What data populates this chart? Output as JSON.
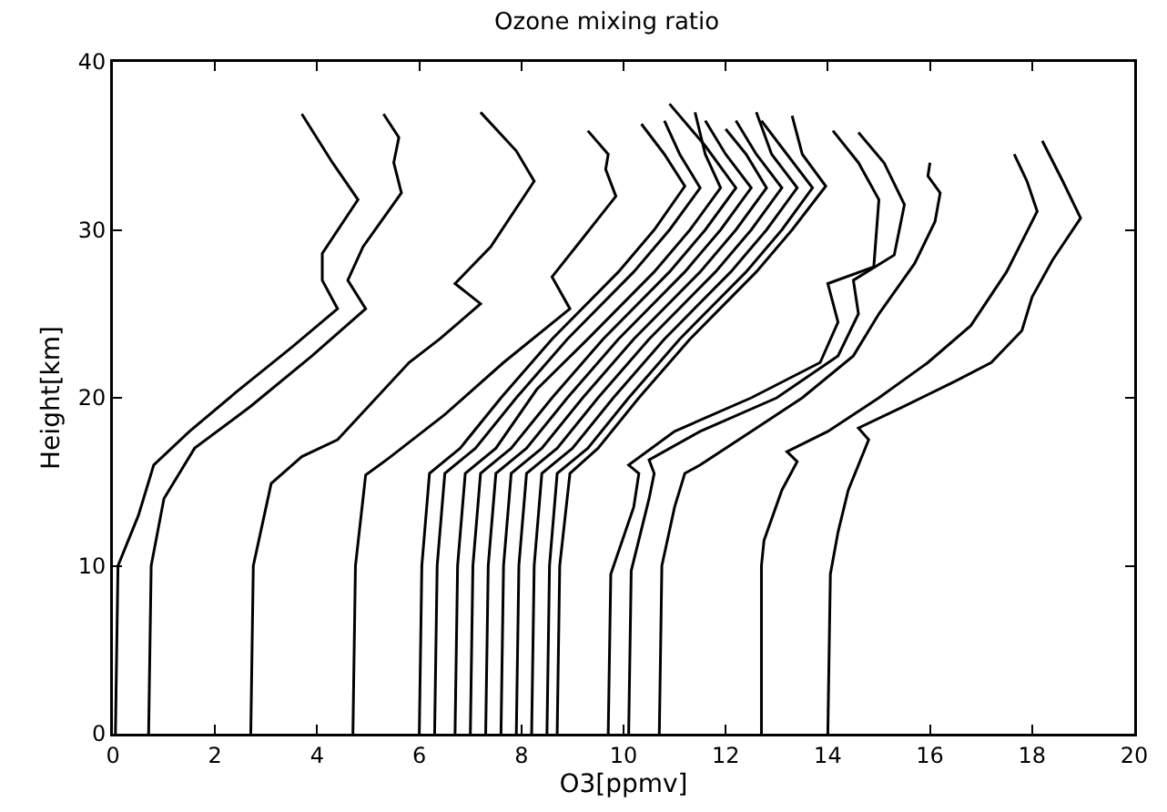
{
  "chart_data": {
    "type": "line",
    "title": "Ozone mixing ratio",
    "xlabel": "O3[ppmv]",
    "ylabel": "Height[km]",
    "xlim": [
      0,
      20
    ],
    "xticks": [
      0,
      2,
      4,
      6,
      8,
      10,
      12,
      14,
      16,
      18,
      20
    ],
    "ylim": [
      0,
      40
    ],
    "yticks": [
      0,
      10,
      20,
      30,
      40
    ],
    "grid": false,
    "marker": "none",
    "line_style": "solid",
    "series": [
      {
        "color": "#000000",
        "x": [
          0.05,
          0.1,
          0.5,
          0.8,
          1.5,
          2.4,
          3.5,
          4.4,
          4.1,
          4.1,
          4.8,
          4.3,
          3.7
        ],
        "values": [
          0,
          10,
          13,
          16,
          18,
          20.3,
          23,
          25.3,
          27,
          28.6,
          31.8,
          34,
          36.9
        ]
      },
      {
        "color": "#000000",
        "x": [
          0.7,
          0.75,
          1.0,
          1.6,
          2.7,
          3.9,
          4.95,
          4.6,
          4.9,
          5.65,
          5.5,
          5.6,
          5.3
        ],
        "values": [
          0,
          10,
          14,
          17,
          19.5,
          22.5,
          25.3,
          27,
          29,
          32.2,
          34,
          35.5,
          36.9
        ]
      },
      {
        "color": "#000000",
        "x": [
          2.7,
          2.75,
          3.1,
          3.7,
          4.4,
          5.8,
          6.4,
          7.2,
          6.7,
          7.4,
          8.25,
          7.9,
          7.2
        ],
        "values": [
          0,
          10,
          14.9,
          16.5,
          17.5,
          22.1,
          23.5,
          25.6,
          26.8,
          29,
          32.9,
          34.7,
          37
        ]
      },
      {
        "color": "#000000",
        "x": [
          4.7,
          4.75,
          4.95,
          5.4,
          6.5,
          7.65,
          8.95,
          8.6,
          9.2,
          9.85,
          9.65,
          9.7,
          9.3
        ],
        "values": [
          0,
          10,
          15.4,
          16.4,
          19,
          22.1,
          25.3,
          27.2,
          29.5,
          32,
          33.6,
          34.5,
          35.9
        ]
      },
      {
        "color": "#000000",
        "x": [
          6.0,
          6.05,
          6.2,
          6.8,
          7.6,
          8.6,
          9.9,
          10.6,
          11.2,
          10.8,
          10.35
        ],
        "values": [
          0,
          10,
          15.5,
          17,
          20,
          23.5,
          27.5,
          30,
          32.6,
          34.5,
          36.3
        ]
      },
      {
        "color": "#000000",
        "x": [
          6.3,
          6.35,
          6.5,
          7.1,
          7.9,
          8.9,
          10.2,
          10.9,
          11.5,
          11.1,
          10.8
        ],
        "values": [
          0,
          10,
          15.5,
          17,
          20,
          23.5,
          27.5,
          30,
          32.5,
          34.5,
          36.5
        ]
      },
      {
        "color": "#000000",
        "x": [
          6.7,
          6.75,
          6.9,
          7.5,
          8.3,
          9.3,
          10.6,
          11.3,
          11.9,
          11.6,
          11.4
        ],
        "values": [
          0,
          10,
          15.5,
          17,
          20.5,
          23.5,
          27.5,
          30,
          32.5,
          34.5,
          37
        ]
      },
      {
        "color": "#000000",
        "x": [
          7.0,
          7.05,
          7.2,
          7.8,
          8.6,
          9.6,
          10.9,
          11.6,
          12.2,
          11.6,
          10.9
        ],
        "values": [
          0,
          10,
          15.5,
          17,
          20,
          23.5,
          27.5,
          30,
          32.5,
          35,
          37.5
        ]
      },
      {
        "color": "#000000",
        "x": [
          7.3,
          7.35,
          7.5,
          8.1,
          8.9,
          9.9,
          11.2,
          11.9,
          12.5,
          12.0,
          11.6
        ],
        "values": [
          0,
          10,
          15.5,
          17,
          20,
          23.5,
          27.5,
          30,
          32.5,
          34.5,
          36.5
        ]
      },
      {
        "color": "#000000",
        "x": [
          7.6,
          7.65,
          7.8,
          8.4,
          9.2,
          10.2,
          11.5,
          12.2,
          12.8,
          12.4,
          12.0
        ],
        "values": [
          0,
          10,
          15.5,
          17,
          20,
          23.5,
          27.5,
          30,
          32.5,
          34.5,
          36
        ]
      },
      {
        "color": "#000000",
        "x": [
          7.9,
          7.95,
          8.1,
          8.7,
          9.5,
          10.5,
          11.8,
          12.5,
          13.1,
          12.6,
          12.2
        ],
        "values": [
          0,
          10,
          15.5,
          17,
          20,
          23.5,
          27.5,
          30,
          32.5,
          34.5,
          36.5
        ]
      },
      {
        "color": "#000000",
        "x": [
          8.2,
          8.25,
          8.4,
          9.0,
          9.8,
          10.8,
          12.1,
          12.8,
          13.4,
          12.9,
          12.6
        ],
        "values": [
          0,
          10,
          15.5,
          17,
          20,
          23.5,
          27.5,
          30,
          32.5,
          34.5,
          37
        ]
      },
      {
        "color": "#000000",
        "x": [
          8.5,
          8.55,
          8.7,
          9.3,
          10.1,
          11.1,
          12.4,
          13.1,
          13.7,
          13.2,
          12.7
        ],
        "values": [
          0,
          10,
          15.5,
          17,
          20,
          23.5,
          27.5,
          30,
          32.5,
          34.5,
          36.5
        ]
      },
      {
        "color": "#000000",
        "x": [
          8.7,
          8.75,
          8.95,
          9.5,
          10.3,
          11.3,
          12.6,
          13.3,
          13.96,
          13.5,
          13.3
        ],
        "values": [
          0,
          10,
          15.5,
          17,
          20,
          23.5,
          27.5,
          30,
          32.6,
          34.5,
          36.8
        ]
      },
      {
        "color": "#000000",
        "x": [
          9.7,
          9.75,
          10.2,
          10.3,
          10.1,
          11.0,
          12.5,
          13.85,
          14.2,
          14.0,
          14.9,
          15.0,
          14.6,
          14.1
        ],
        "values": [
          0,
          9.5,
          13.5,
          15.5,
          16,
          18,
          20,
          22.1,
          24.5,
          26.8,
          27.8,
          31.8,
          34,
          35.9
        ]
      },
      {
        "color": "#000000",
        "x": [
          10.1,
          10.15,
          10.5,
          10.6,
          10.5,
          11.5,
          13.0,
          14.2,
          14.6,
          14.5,
          15.3,
          15.5,
          15.1,
          14.6
        ],
        "values": [
          0,
          9.7,
          14,
          15.5,
          16.3,
          18,
          20,
          22.5,
          25,
          27,
          28.5,
          31.5,
          34,
          35.8
        ]
      },
      {
        "color": "#000000",
        "x": [
          10.7,
          10.75,
          11.0,
          11.2,
          11.5,
          12.5,
          13.5,
          14.5,
          15.0,
          15.7,
          16.1,
          16.2,
          15.96,
          16.0
        ],
        "values": [
          0,
          10,
          13.5,
          15.5,
          16,
          18,
          20,
          22.5,
          25,
          28,
          30.5,
          32.2,
          33.2,
          34
        ]
      },
      {
        "color": "#000000",
        "x": [
          12.7,
          12.7,
          12.75,
          13.1,
          13.4,
          13.2,
          14.0,
          15.0,
          15.96,
          16.8,
          17.5,
          18.1,
          17.9,
          17.65
        ],
        "values": [
          0,
          10,
          11.5,
          14.5,
          16.2,
          16.8,
          18,
          20,
          22.1,
          24.3,
          27.5,
          31.1,
          32.9,
          34.5
        ]
      },
      {
        "color": "#000000",
        "x": [
          14.0,
          14.05,
          14.2,
          14.4,
          14.8,
          14.6,
          15.5,
          16.5,
          17.2,
          17.8,
          18.0,
          18.4,
          18.95,
          18.6,
          18.2
        ],
        "values": [
          0,
          9.5,
          12,
          14.5,
          17.5,
          18.2,
          19.5,
          21,
          22.1,
          24,
          26,
          28.2,
          30.7,
          32.9,
          35.3
        ]
      }
    ]
  }
}
